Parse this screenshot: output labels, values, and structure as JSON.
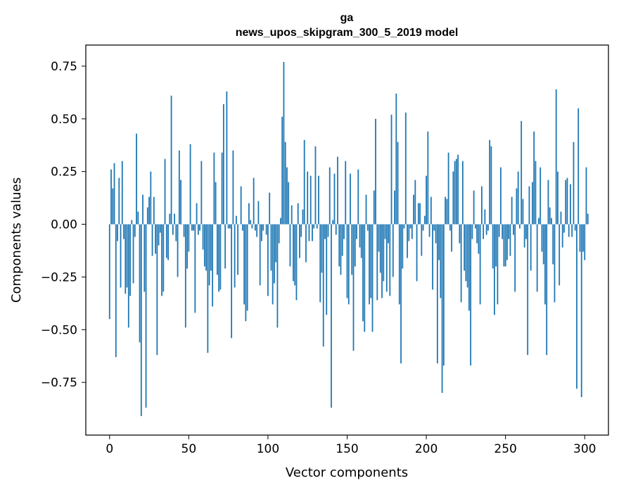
{
  "chart_data": {
    "type": "bar",
    "title": "ga",
    "subtitle": "news_upos_skipgram_300_5_2019 model",
    "xlabel": "Vector components",
    "ylabel": "Components values",
    "xlim": [
      -15,
      315
    ],
    "ylim": [
      -1.0,
      0.85
    ],
    "xticks": [
      0,
      50,
      100,
      150,
      200,
      250,
      300
    ],
    "xtick_labels": [
      "0",
      "50",
      "100",
      "150",
      "200",
      "250",
      "300"
    ],
    "yticks": [
      -0.75,
      -0.5,
      -0.25,
      0.0,
      0.25,
      0.5,
      0.75
    ],
    "ytick_labels": [
      "−0.75",
      "−0.50",
      "−0.25",
      "0.00",
      "0.25",
      "0.50",
      "0.75"
    ],
    "bar_color": "#1f77b4",
    "bar_width": 0.8,
    "grid": false,
    "x": "0..299",
    "values": [
      -0.45,
      0.26,
      0.17,
      0.29,
      -0.63,
      -0.08,
      0.22,
      -0.3,
      0.3,
      -0.07,
      -0.33,
      -0.3,
      -0.49,
      -0.34,
      0.02,
      -0.28,
      -0.06,
      0.43,
      0.06,
      -0.56,
      -0.91,
      0.14,
      -0.32,
      -0.87,
      0.08,
      0.13,
      0.25,
      -0.15,
      0.13,
      -0.14,
      -0.62,
      -0.1,
      -0.04,
      -0.34,
      -0.32,
      0.31,
      -0.16,
      -0.17,
      0.05,
      0.61,
      -0.05,
      0.05,
      -0.08,
      -0.25,
      0.35,
      0.21,
      0.0,
      -0.06,
      -0.49,
      -0.21,
      -0.13,
      0.38,
      -0.03,
      -0.03,
      -0.42,
      0.1,
      -0.05,
      -0.03,
      0.3,
      -0.12,
      -0.2,
      -0.22,
      -0.61,
      -0.29,
      -0.22,
      -0.39,
      0.34,
      0.2,
      -0.24,
      -0.32,
      -0.31,
      0.34,
      0.57,
      -0.21,
      0.63,
      -0.02,
      -0.02,
      -0.54,
      0.35,
      -0.3,
      0.04,
      -0.24,
      0.0,
      0.18,
      -0.03,
      -0.38,
      -0.46,
      -0.41,
      0.1,
      0.02,
      -0.02,
      0.22,
      -0.03,
      -0.06,
      0.11,
      -0.29,
      -0.08,
      -0.03,
      0.0,
      -0.05,
      -0.34,
      0.15,
      -0.22,
      -0.38,
      -0.28,
      -0.18,
      -0.49,
      -0.09,
      0.03,
      0.51,
      0.77,
      0.39,
      0.27,
      0.2,
      -0.2,
      0.09,
      -0.27,
      -0.29,
      -0.36,
      0.1,
      -0.16,
      -0.06,
      0.07,
      0.4,
      -0.18,
      0.25,
      -0.08,
      0.23,
      -0.08,
      -0.02,
      0.37,
      -0.02,
      0.23,
      -0.37,
      -0.23,
      -0.58,
      -0.07,
      -0.43,
      -0.06,
      0.27,
      -0.87,
      0.02,
      0.24,
      -0.05,
      0.32,
      -0.2,
      -0.24,
      -0.15,
      -0.07,
      0.3,
      -0.35,
      -0.38,
      0.24,
      -0.24,
      -0.6,
      -0.2,
      -0.07,
      0.26,
      -0.11,
      -0.16,
      -0.46,
      -0.51,
      0.14,
      -0.03,
      -0.38,
      -0.35,
      -0.51,
      0.16,
      0.5,
      -0.36,
      -0.13,
      -0.23,
      -0.35,
      -0.27,
      -0.07,
      -0.32,
      -0.09,
      -0.34,
      0.52,
      -0.25,
      0.16,
      0.62,
      0.39,
      -0.38,
      -0.66,
      -0.21,
      -0.02,
      0.53,
      -0.16,
      -0.08,
      -0.02,
      -0.07,
      0.14,
      0.21,
      -0.27,
      0.1,
      0.1,
      -0.15,
      -0.03,
      0.04,
      0.23,
      0.44,
      -0.06,
      0.13,
      -0.31,
      -0.03,
      -0.09,
      -0.66,
      -0.17,
      -0.35,
      -0.8,
      -0.67,
      0.13,
      0.12,
      0.34,
      -0.03,
      -0.13,
      0.25,
      0.3,
      0.31,
      0.33,
      -0.09,
      -0.37,
      0.3,
      -0.22,
      -0.27,
      -0.3,
      -0.41,
      -0.67,
      -0.07,
      0.16,
      -0.02,
      -0.09,
      -0.14,
      -0.38,
      0.18,
      -0.07,
      0.07,
      -0.05,
      -0.03,
      0.4,
      0.37,
      -0.21,
      -0.43,
      -0.2,
      -0.38,
      -0.06,
      0.27,
      -0.07,
      -0.2,
      -0.2,
      -0.17,
      -0.07,
      -0.15,
      0.13,
      -0.05,
      -0.32,
      0.17,
      0.25,
      -0.02,
      0.49,
      0.12,
      -0.11,
      -0.07,
      -0.62,
      0.18,
      -0.22,
      0.2,
      0.44,
      0.3,
      -0.32,
      0.03,
      0.27,
      -0.13,
      -0.19,
      -0.38,
      -0.62,
      0.21,
      0.08,
      0.03,
      -0.19,
      -0.37,
      0.64,
      0.25,
      -0.29,
      0.06,
      -0.11,
      -0.04,
      0.21,
      0.22,
      -0.06,
      0.19,
      -0.06,
      0.39,
      -0.03,
      -0.78,
      0.55,
      -0.13,
      -0.82,
      -0.13,
      -0.17,
      0.27,
      0.05
    ]
  }
}
